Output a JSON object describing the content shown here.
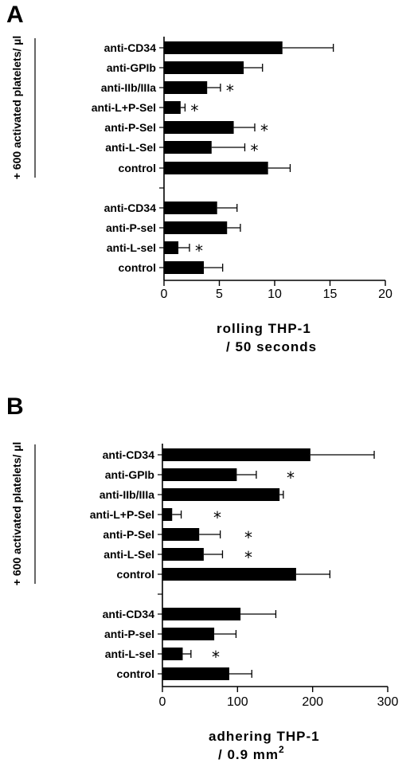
{
  "chart_data": [
    {
      "type": "bar",
      "panel": "A",
      "group_label": "+ 600 activated platelets/ µl",
      "categories": [
        "anti-CD34",
        "anti-GPIb",
        "anti-IIb/IIIa",
        "anti-L+P-Sel",
        "anti-P-Sel",
        "anti-L-Sel",
        "control",
        "anti-CD34",
        "anti-P-sel",
        "anti-L-sel",
        "control"
      ],
      "values": [
        10.7,
        7.2,
        3.9,
        1.5,
        6.3,
        4.3,
        9.4,
        4.8,
        5.7,
        1.3,
        3.6
      ],
      "errors": [
        4.6,
        1.7,
        1.2,
        0.4,
        1.9,
        3.0,
        2.0,
        1.8,
        1.2,
        1.0,
        1.7
      ],
      "significant": [
        false,
        false,
        true,
        true,
        true,
        true,
        false,
        false,
        false,
        true,
        false
      ],
      "xticks": [
        0,
        5,
        10,
        15,
        20
      ],
      "xlim": [
        0,
        20
      ],
      "xlabel_line1": "rolling  THP-1",
      "xlabel_line2": "/ 50 seconds"
    },
    {
      "type": "bar",
      "panel": "B",
      "group_label": "+ 600 activated platelets/  µl",
      "categories": [
        "anti-CD34",
        "anti-GPIb",
        "anti-IIb/IIIa",
        "anti-L+P-Sel",
        "anti-P-Sel",
        "anti-L-Sel",
        "control",
        "anti-CD34",
        "anti-P-sel",
        "anti-L-sel",
        "control"
      ],
      "values": [
        197,
        99,
        156,
        13,
        49,
        55,
        178,
        104,
        69,
        27,
        89
      ],
      "errors": [
        85,
        26,
        5,
        12,
        28,
        25,
        45,
        47,
        29,
        11,
        30
      ],
      "significant": [
        false,
        true,
        false,
        true,
        true,
        true,
        false,
        false,
        false,
        true,
        false
      ],
      "xticks": [
        0,
        100,
        200,
        300
      ],
      "xlim": [
        0,
        300
      ],
      "xlabel_line1": "adhering  THP-1",
      "xlabel_line2": "/ 0.9 mm",
      "xlabel_sup": "2"
    }
  ],
  "symbols": {
    "significance_marker": "*"
  }
}
